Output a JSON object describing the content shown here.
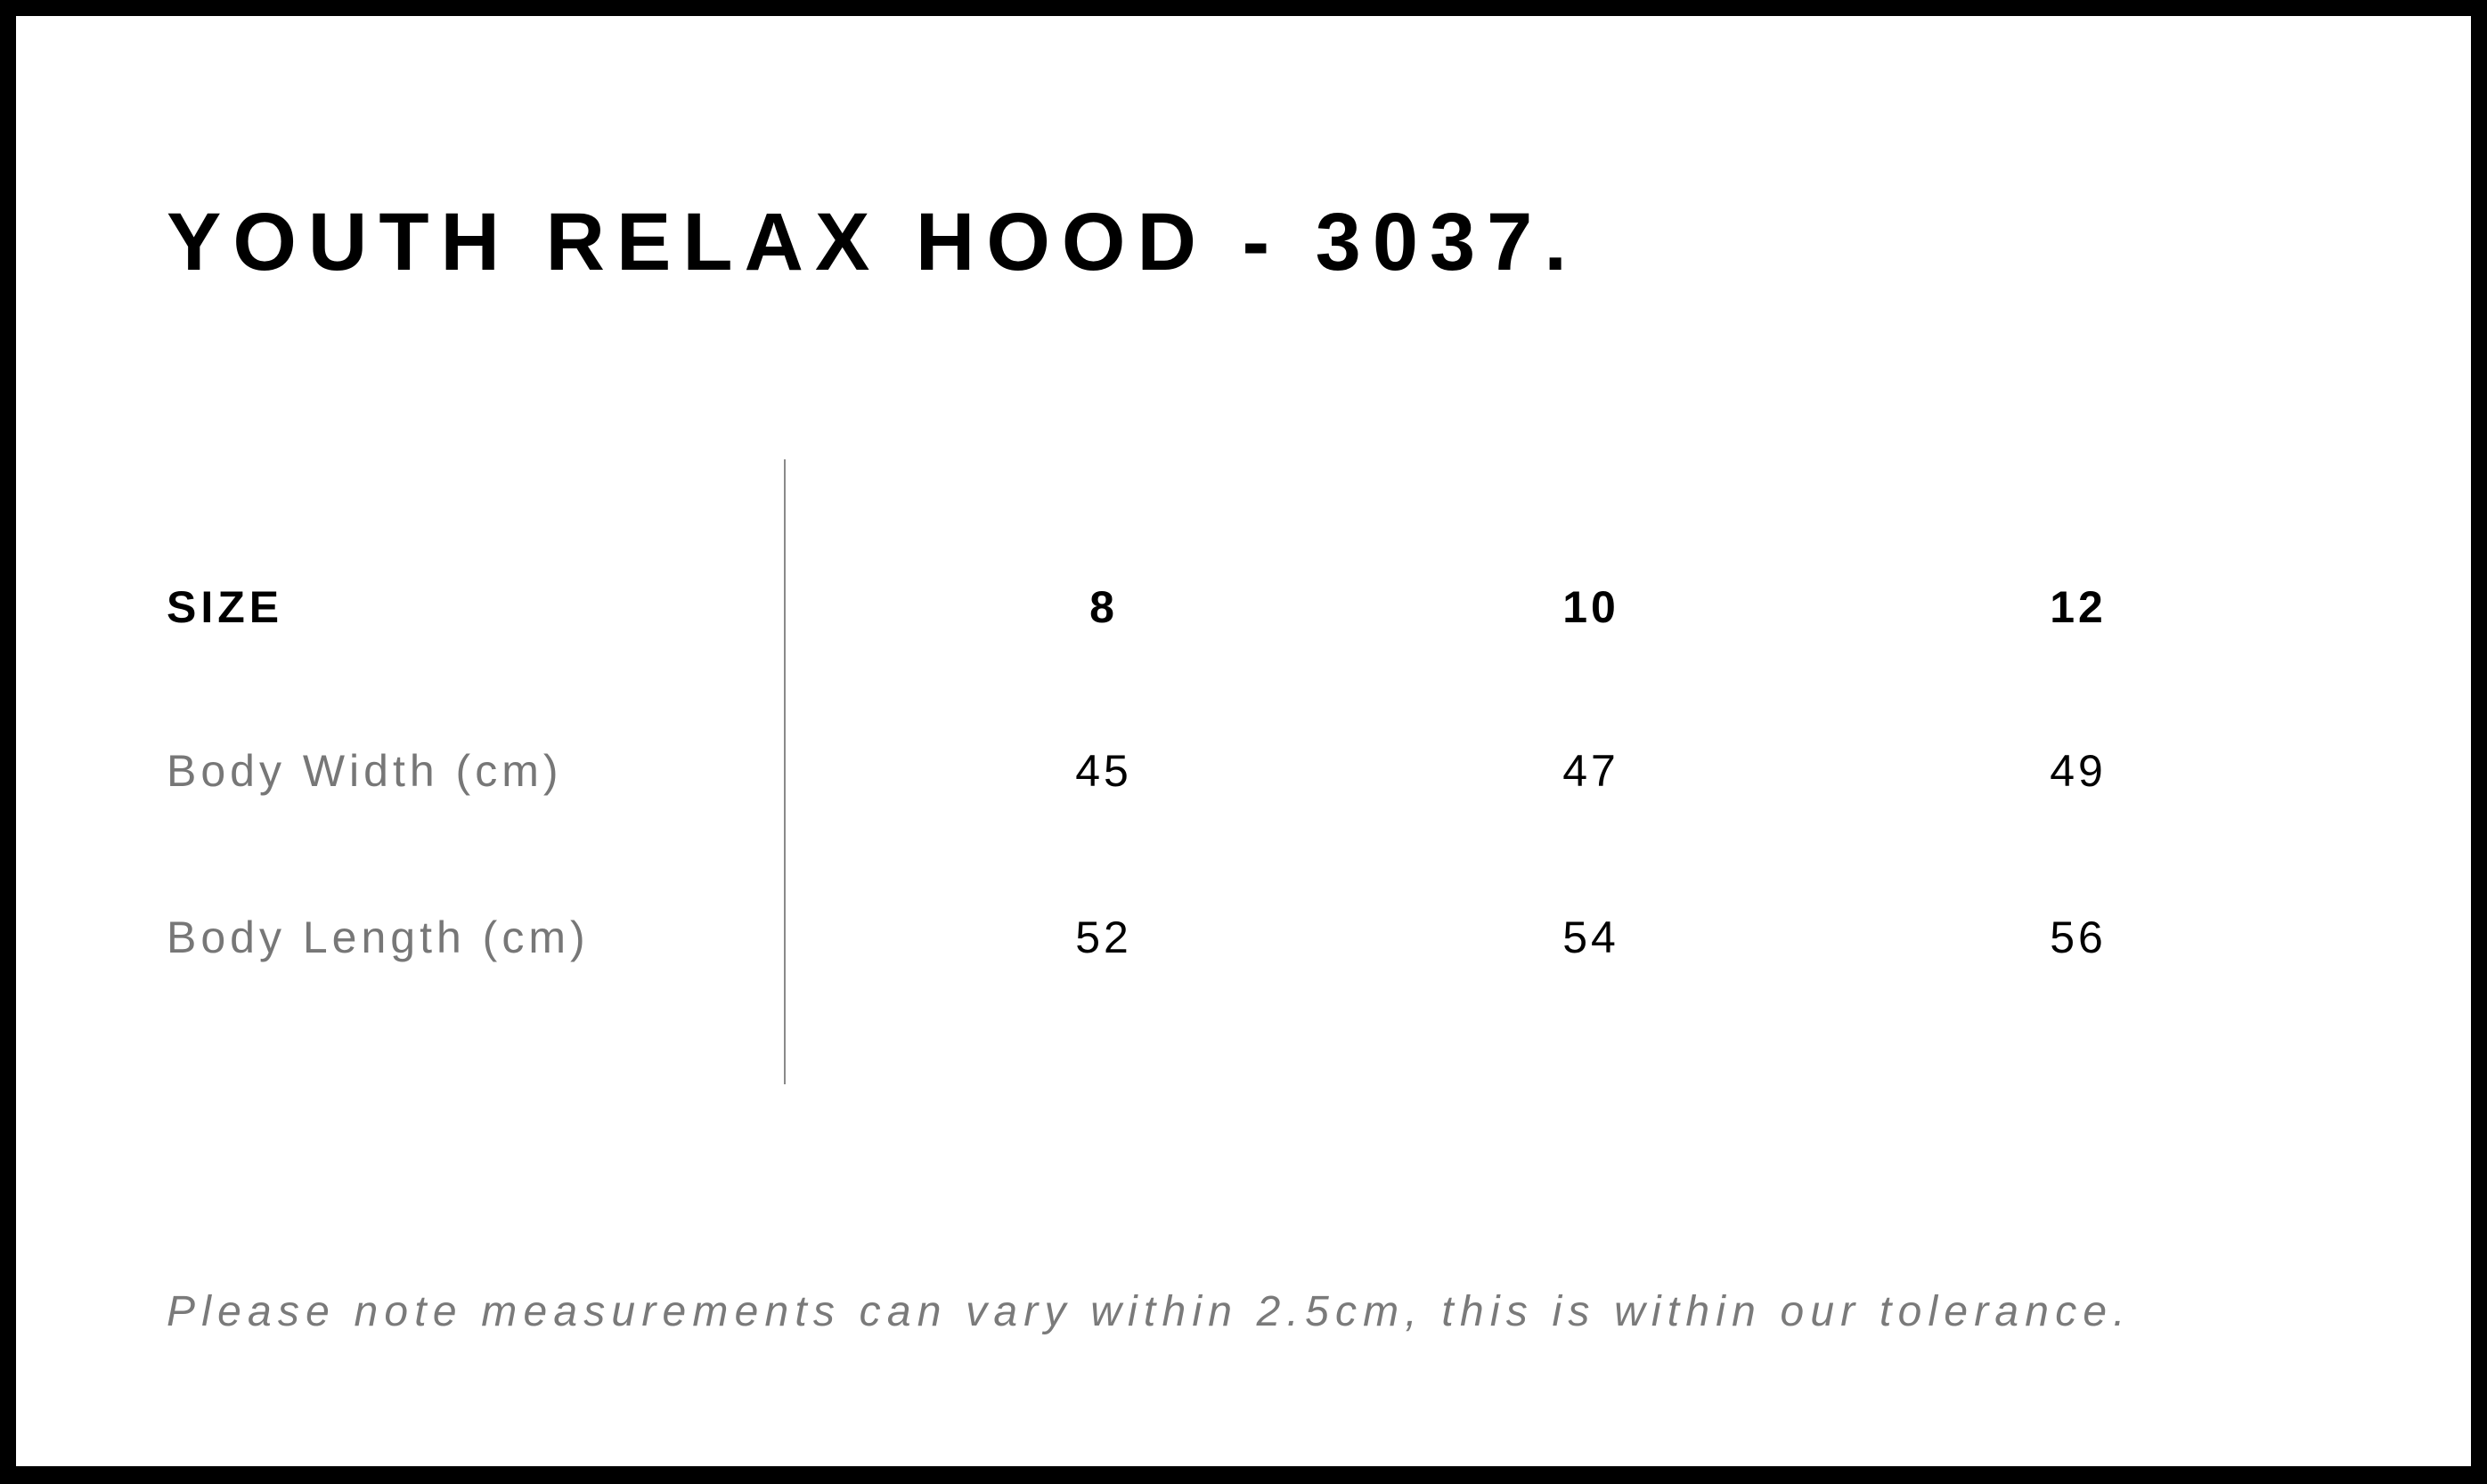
{
  "title": "YOUTH RELAX HOOD - 3037.",
  "table": {
    "header": {
      "label": "SIZE",
      "sizes": [
        "8",
        "10",
        "12"
      ]
    },
    "rows": [
      {
        "label": "Body Width (cm)",
        "values": [
          "45",
          "47",
          "49"
        ]
      },
      {
        "label": "Body Length (cm)",
        "values": [
          "52",
          "54",
          "56"
        ]
      }
    ]
  },
  "note": "Please note measurements can vary within 2.5cm, this is within our tolerance."
}
